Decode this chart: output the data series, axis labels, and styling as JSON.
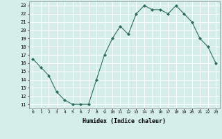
{
  "x": [
    0,
    1,
    2,
    3,
    4,
    5,
    6,
    7,
    8,
    9,
    10,
    11,
    12,
    13,
    14,
    15,
    16,
    17,
    18,
    19,
    20,
    21,
    22,
    23
  ],
  "y": [
    16.5,
    15.5,
    14.5,
    12.5,
    11.5,
    11,
    11,
    11,
    14,
    17,
    19,
    20.5,
    19.5,
    22,
    23,
    22.5,
    22.5,
    22,
    23,
    22,
    21,
    19,
    18,
    16
  ],
  "line_color": "#2e6b5e",
  "marker": "D",
  "marker_size": 2,
  "bg_color": "#d6eeea",
  "grid_color": "#ffffff",
  "xlabel": "Humidex (Indice chaleur)",
  "xlim": [
    -0.5,
    23.5
  ],
  "ylim": [
    10.5,
    23.5
  ],
  "yticks": [
    11,
    12,
    13,
    14,
    15,
    16,
    17,
    18,
    19,
    20,
    21,
    22,
    23
  ],
  "xticks": [
    0,
    1,
    2,
    3,
    4,
    5,
    6,
    7,
    8,
    9,
    10,
    11,
    12,
    13,
    14,
    15,
    16,
    17,
    18,
    19,
    20,
    21,
    22,
    23
  ]
}
